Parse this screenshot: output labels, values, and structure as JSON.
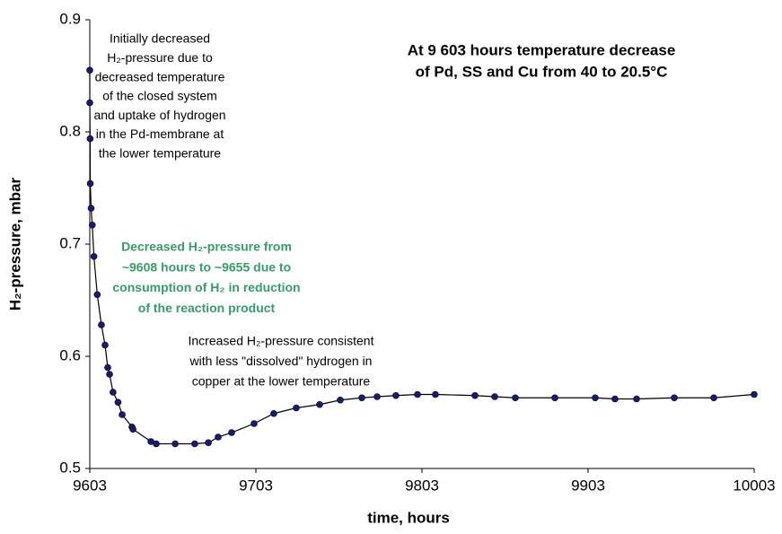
{
  "chart_data": {
    "type": "line",
    "xlabel": "time, hours",
    "ylabel": "H₂-pressure, mbar",
    "xlim": [
      9603,
      10003
    ],
    "xticks": [
      9603,
      9703,
      9803,
      9903,
      10003
    ],
    "ylim": [
      0.5,
      0.9
    ],
    "yticks": [
      0.5,
      0.6,
      0.7,
      0.8,
      0.9
    ],
    "series": [
      {
        "color": "#1a1a6e",
        "x": [
          9603.0,
          9603.0,
          9603.2,
          9603.3,
          9603.8,
          9604.5,
          9605.5,
          9607.5,
          9610,
          9612.2,
          9613.8,
          9614.9,
          9617,
          9620,
          9622.5,
          9628.4,
          9629,
          9639.8,
          9643,
          9654.4,
          9666.2,
          9674.4,
          9680.3,
          9688.4,
          9701.9,
          9713.8,
          9727.3,
          9741.4,
          9753.8,
          9766.8,
          9776,
          9787.3,
          9800.3,
          9811.1,
          9834.9,
          9846.8,
          9859.2,
          9883,
          9907.3,
          9919.2,
          9932.2,
          9954.9,
          9978.7,
          10003
        ],
        "values": [
          0.855,
          0.826,
          0.794,
          0.754,
          0.732,
          0.717,
          0.689,
          0.655,
          0.628,
          0.61,
          0.59,
          0.584,
          0.568,
          0.559,
          0.548,
          0.537,
          0.535,
          0.524,
          0.522,
          0.522,
          0.522,
          0.523,
          0.528,
          0.532,
          0.54,
          0.549,
          0.554,
          0.557,
          0.561,
          0.563,
          0.564,
          0.565,
          0.566,
          0.566,
          0.565,
          0.564,
          0.563,
          0.563,
          0.563,
          0.562,
          0.562,
          0.563,
          0.563,
          0.566
        ]
      }
    ],
    "annotations": [
      {
        "lines": [
          "Initially decreased",
          "H₂-pressure due to",
          "decreased temperature",
          "of  the closed system",
          "and uptake of hydrogen",
          "in the Pd-membrane at",
          "the lower temperature"
        ]
      },
      {
        "lines": [
          "At 9 603 hours temperature decrease",
          "of Pd, SS and Cu from 40 to 20.5°C"
        ],
        "bold": true
      },
      {
        "lines": [
          "Decreased H₂-pressure from",
          "~9608 hours to ~9655 due to",
          "consumption of H₂ in reduction",
          "of the reaction product"
        ],
        "bold": true,
        "color": "#3a9a6a"
      },
      {
        "lines": [
          "Increased H₂-pressure consistent",
          "with less \"dissolved\" hydrogen in",
          "copper at the lower temperature"
        ]
      }
    ]
  }
}
